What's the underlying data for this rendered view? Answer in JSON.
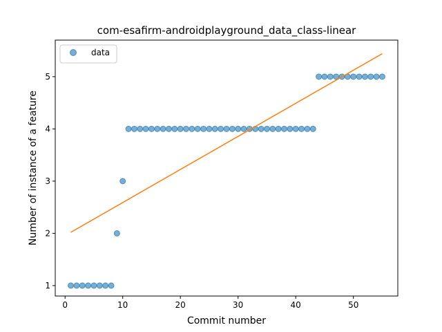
{
  "chart_data": {
    "type": "scatter",
    "title": "com-esafirm-androidplayground_data_class-linear",
    "xlabel": "Commit number",
    "ylabel": "Number of instance of a feature",
    "xlim": [
      -1.7,
      57.7
    ],
    "ylim": [
      0.8,
      5.7
    ],
    "xticks": [
      0,
      10,
      20,
      30,
      40,
      50
    ],
    "yticks": [
      1,
      2,
      3,
      4,
      5
    ],
    "legend": {
      "position": "upper-left",
      "entries": [
        "data"
      ]
    },
    "grid": false,
    "series": [
      {
        "name": "data",
        "kind": "scatter",
        "color": "#1f77b4",
        "x": [
          1,
          2,
          3,
          4,
          5,
          6,
          7,
          8,
          9,
          10,
          11,
          12,
          13,
          14,
          15,
          16,
          17,
          18,
          19,
          20,
          21,
          22,
          23,
          24,
          25,
          26,
          27,
          28,
          29,
          30,
          31,
          32,
          33,
          34,
          35,
          36,
          37,
          38,
          39,
          40,
          41,
          42,
          43,
          44,
          45,
          46,
          47,
          48,
          49,
          50,
          51,
          52,
          53,
          54,
          55
        ],
        "y": [
          1,
          1,
          1,
          1,
          1,
          1,
          1,
          1,
          2,
          3,
          4,
          4,
          4,
          4,
          4,
          4,
          4,
          4,
          4,
          4,
          4,
          4,
          4,
          4,
          4,
          4,
          4,
          4,
          4,
          4,
          4,
          4,
          4,
          4,
          4,
          4,
          4,
          4,
          4,
          4,
          4,
          4,
          4,
          5,
          5,
          5,
          5,
          5,
          5,
          5,
          5,
          5,
          5,
          5,
          5
        ]
      },
      {
        "kind": "line",
        "color": "#ff7f0e",
        "x": [
          1,
          55
        ],
        "y": [
          2.02,
          5.44
        ]
      }
    ]
  }
}
